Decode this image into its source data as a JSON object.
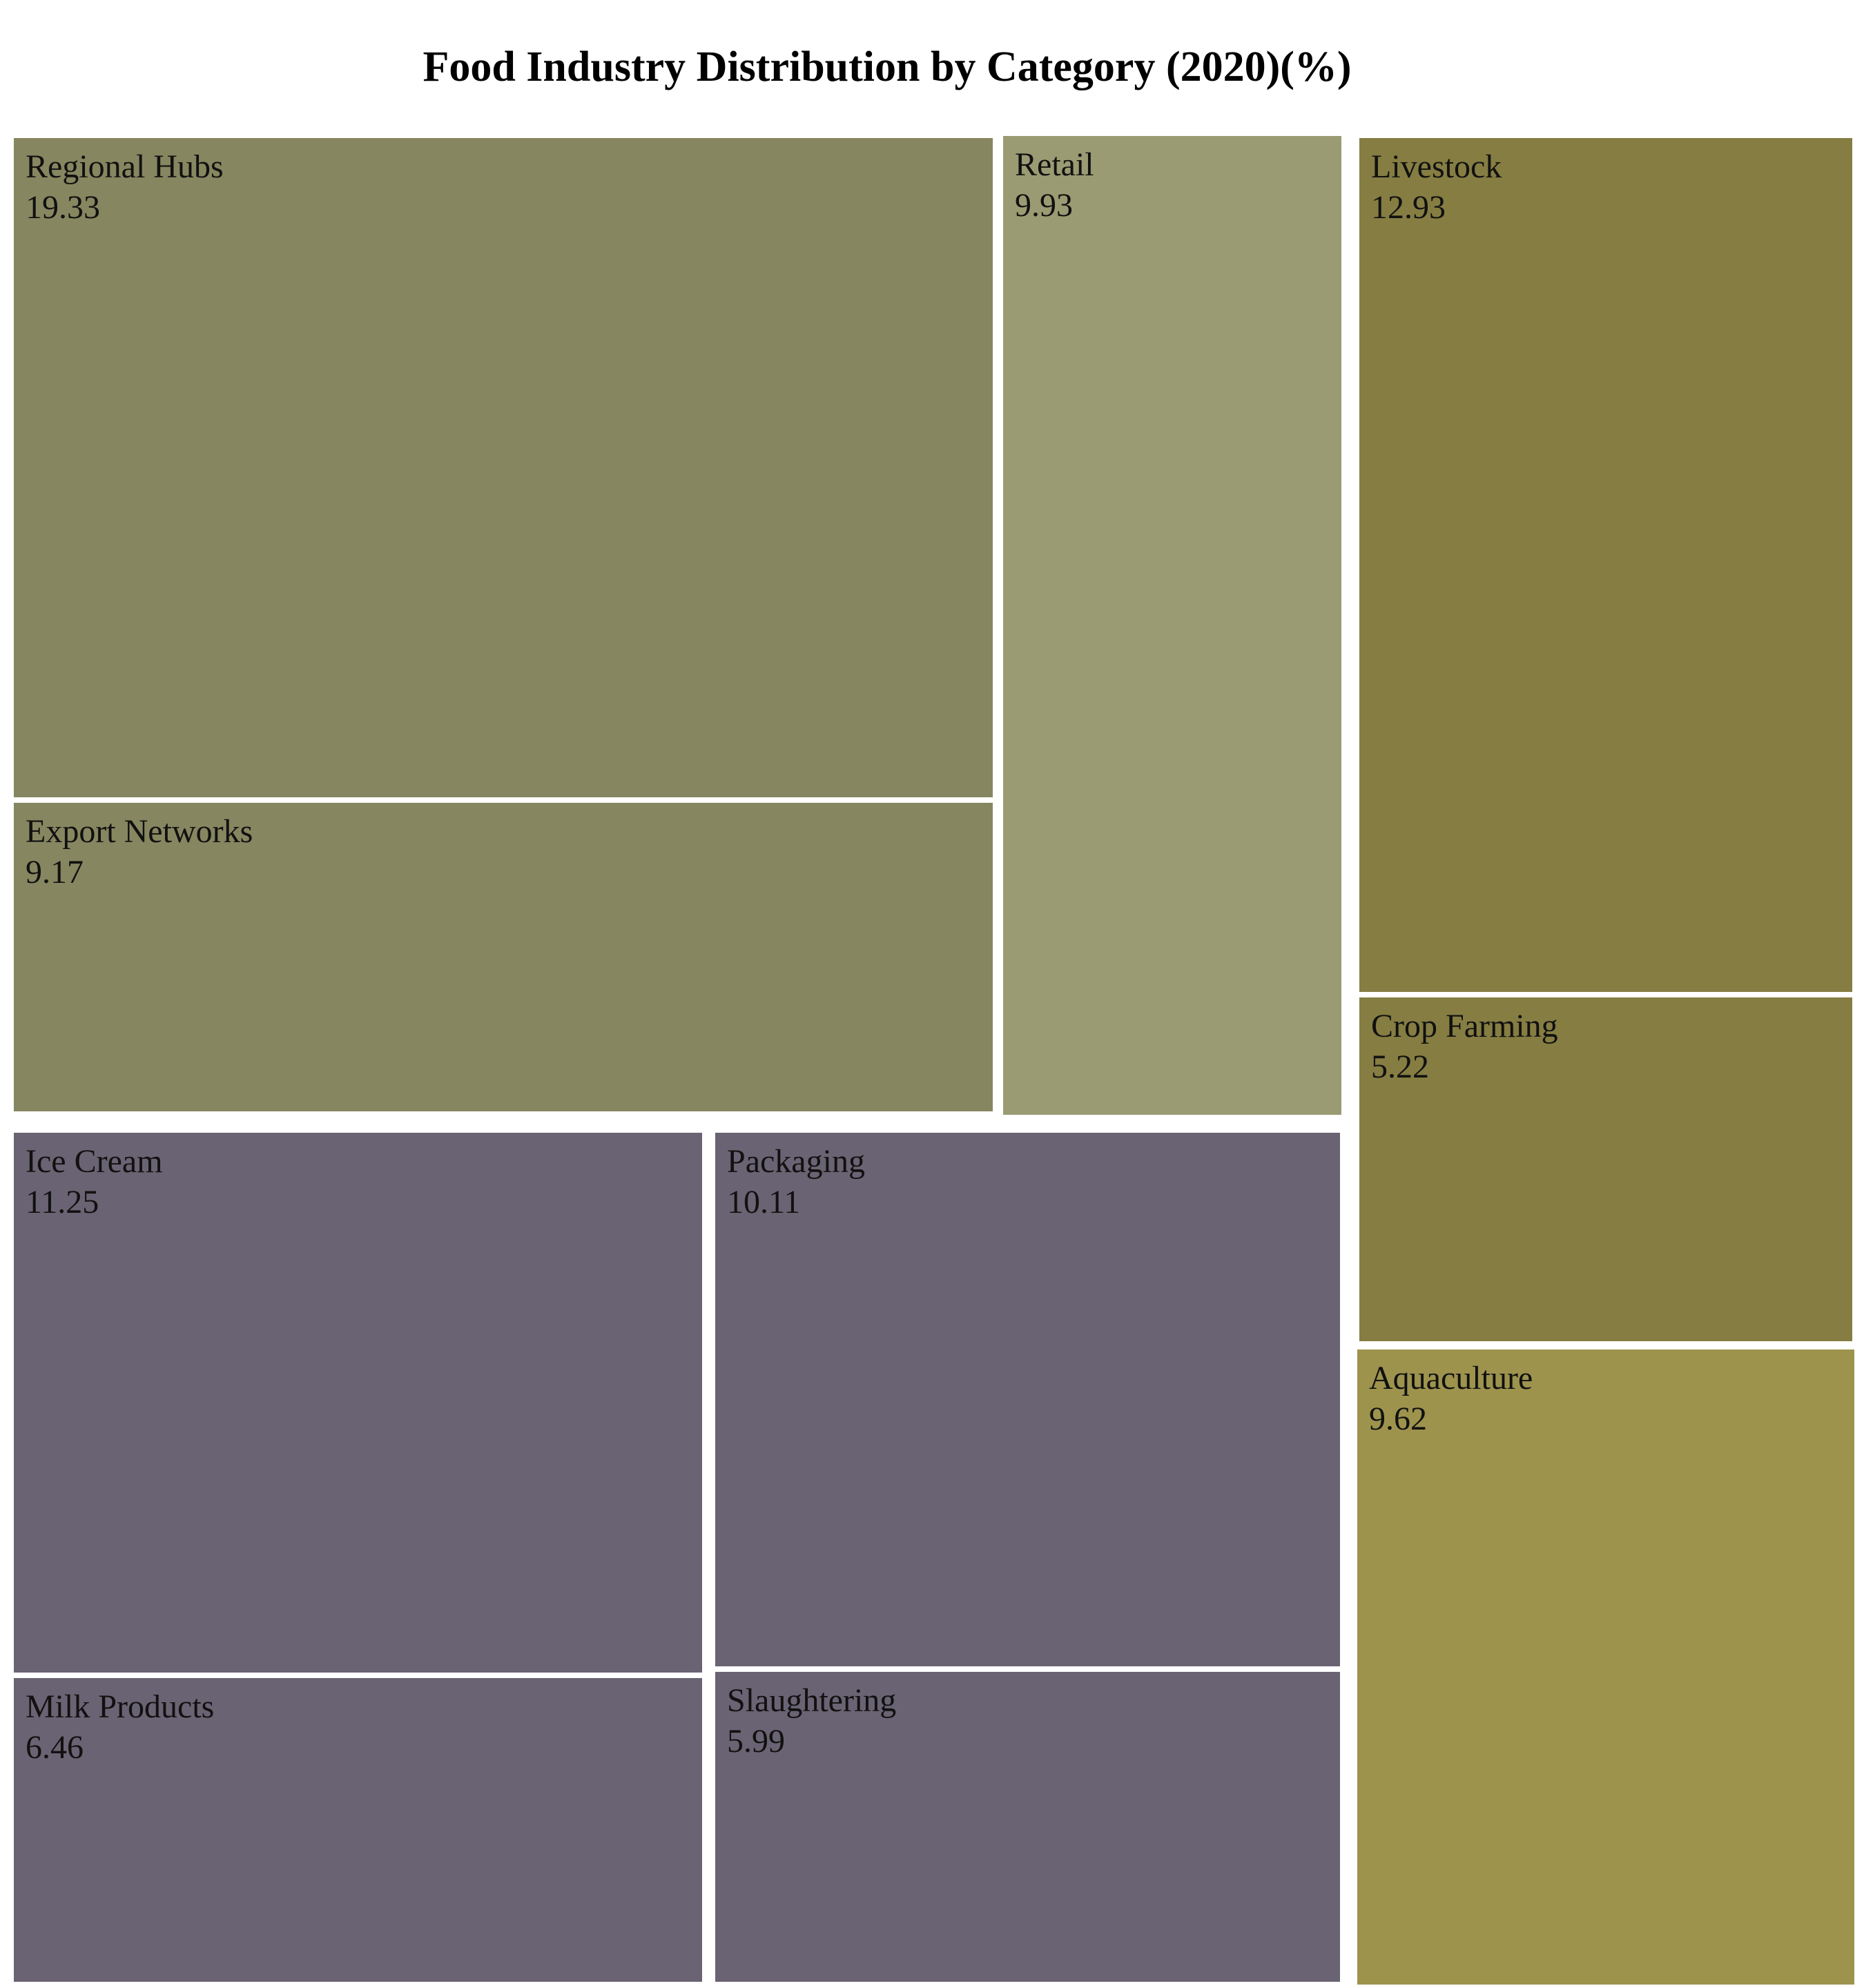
{
  "chart_data": {
    "type": "treemap",
    "title": "Food Industry Distribution by Category (2020)(%)",
    "unit": "%",
    "groups": [
      {
        "color": "#868660",
        "items": [
          {
            "label": "Regional Hubs",
            "value": 19.33
          },
          {
            "label": "Export Networks",
            "value": 9.17
          }
        ]
      },
      {
        "color": "#9b9b73",
        "items": [
          {
            "label": "Retail",
            "value": 9.93
          }
        ]
      },
      {
        "color": "#6a6373",
        "items": [
          {
            "label": "Ice Cream",
            "value": 11.25
          },
          {
            "label": "Milk Products",
            "value": 6.46
          },
          {
            "label": "Packaging",
            "value": 10.11
          },
          {
            "label": "Slaughtering",
            "value": 5.99
          }
        ]
      },
      {
        "color": "#857d42",
        "items": [
          {
            "label": "Livestock",
            "value": 12.93
          },
          {
            "label": "Crop Farming",
            "value": 5.22
          }
        ]
      },
      {
        "color": "#9d934d",
        "items": [
          {
            "label": "Aquaculture",
            "value": 9.62
          }
        ]
      }
    ]
  }
}
